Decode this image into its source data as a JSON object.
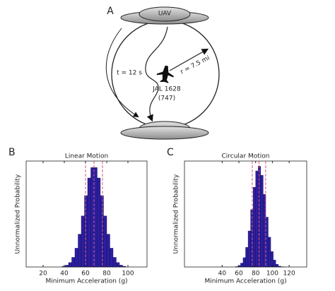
{
  "diagram": {
    "label": "A",
    "uav": "UAV",
    "time": "t = 12 s",
    "radius": "r = 7.5 mi",
    "aircraft": "JAL 1628",
    "aircraft_type": "(747)"
  },
  "chart_data": [
    {
      "type": "histogram",
      "label": "B",
      "title": "Linear Motion",
      "xlabel": "Minimum Acceleration (g)",
      "ylabel": "Unnormalized Probability",
      "bins": [
        38,
        41,
        44,
        47,
        50,
        53,
        56,
        59,
        62,
        65,
        68,
        71,
        74,
        77,
        80,
        83,
        86,
        89,
        92,
        95,
        98
      ],
      "counts": [
        0.7,
        1.8,
        4.4,
        9.5,
        18.6,
        32.5,
        50.6,
        70.7,
        88.2,
        98.6,
        98.6,
        88.2,
        70.7,
        50.6,
        32.5,
        18.6,
        9.5,
        4.4,
        1.8,
        0.7
      ],
      "color": "#2b1f9e",
      "reference_lines": [
        60,
        68,
        76
      ],
      "reference_color": "#e0507a",
      "xlim": [
        4,
        118
      ],
      "xticks": [
        20,
        40,
        60,
        80,
        100
      ],
      "ylim": [
        0,
        105
      ]
    },
    {
      "type": "histogram",
      "label": "C",
      "title": "Circular Motion",
      "xlabel": "Minimum Acceleration (g)",
      "ylabel": "Unnormalized Probability",
      "bins": [
        56,
        59,
        62,
        65,
        68,
        71,
        74,
        77,
        80,
        83,
        86,
        89,
        92,
        95,
        98,
        101,
        104,
        107,
        110,
        113,
        116
      ],
      "counts": [
        0.4,
        1.3,
        3.8,
        9.2,
        19.4,
        35.7,
        56.9,
        79.0,
        95.2,
        99.8,
        90.9,
        71.9,
        49.4,
        29.5,
        15.3,
        6.9,
        2.7,
        0.9,
        0.3,
        0.1
      ],
      "color": "#2b1f9e",
      "reference_lines": [
        76,
        84,
        92
      ],
      "reference_color": "#e0507a",
      "xlim": [
        -5,
        141
      ],
      "xticks": [
        40,
        60,
        80,
        100,
        120
      ],
      "ylim": [
        0,
        105
      ]
    }
  ]
}
